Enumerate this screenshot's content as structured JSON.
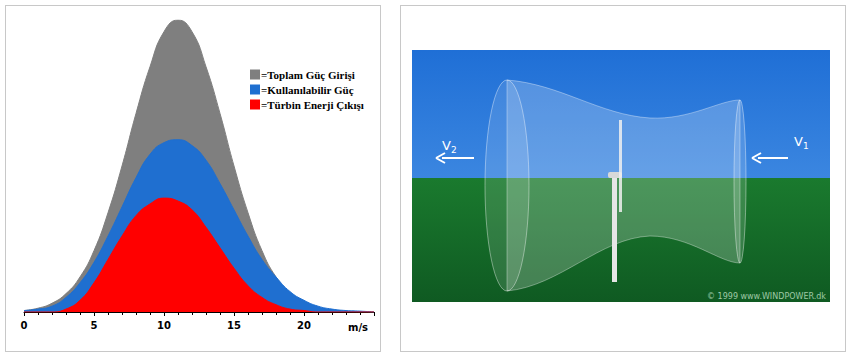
{
  "chart_data": {
    "type": "area",
    "x": [
      0,
      1,
      2,
      3,
      4,
      5,
      6,
      7,
      8,
      9,
      10,
      11,
      12,
      13,
      14,
      15,
      16,
      17,
      18,
      19,
      20,
      21,
      22,
      23,
      24,
      25
    ],
    "series": [
      {
        "name": "=Toplam Güç Girişi",
        "color": "#7f7f7f",
        "values": [
          0.5,
          1.3,
          3,
          6.3,
          12,
          21,
          34,
          50,
          68,
          84,
          96,
          100,
          96,
          84,
          68,
          50,
          34,
          21,
          12,
          6.3,
          3,
          1.3,
          0.5,
          0.2,
          0.1,
          0
        ]
      },
      {
        "name": "=Kullanılabilir Güç",
        "color": "#1f6fd0",
        "values": [
          0.5,
          1,
          2,
          5,
          10,
          17,
          26,
          36,
          46,
          54,
          58,
          59,
          57,
          52,
          44,
          35,
          26,
          18,
          12,
          7,
          4,
          2,
          1,
          0.5,
          0.3,
          0
        ]
      },
      {
        "name": "=Türbin Enerji Çıkışı",
        "color": "#ff0000",
        "values": [
          0,
          0,
          0,
          1,
          4,
          10,
          18,
          26,
          33,
          37,
          39,
          38,
          35,
          29,
          22,
          15,
          9,
          5,
          2.5,
          1,
          0.5,
          0,
          0,
          0,
          0,
          0
        ]
      }
    ],
    "x_label": "m/s",
    "xlim": [
      0,
      25
    ],
    "xticks": [
      0,
      5,
      10,
      15,
      20
    ],
    "ylim": [
      0,
      100
    ],
    "tick_labels": "x",
    "grid": false,
    "legend": "upper right"
  },
  "diagram": {
    "arrows": [
      {
        "label": "V",
        "sub": "2"
      },
      {
        "label": "V",
        "sub": "1"
      }
    ],
    "credit": "© 1999 www.WINDPOWER.dk"
  }
}
